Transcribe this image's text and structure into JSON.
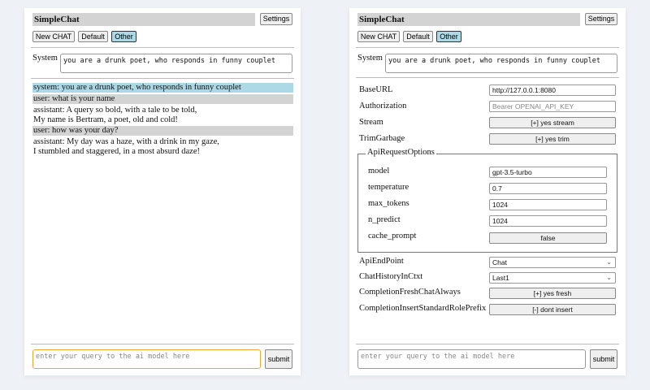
{
  "app_title": "SimpleChat",
  "settings_label": "Settings",
  "new_chat_label": "New CHAT",
  "chat_sessions": [
    {
      "label": "Default",
      "selected": false
    },
    {
      "label": "Other",
      "selected": true
    }
  ],
  "system_label": "System",
  "system_prompt": "you are a drunk poet, who responds in funny couplet",
  "messages": [
    {
      "role": "system",
      "text": "system: you are a drunk poet, who responds in funny couplet"
    },
    {
      "role": "user",
      "text": "user: what is your name"
    },
    {
      "role": "assistant",
      "lines": [
        "assistant: A query so bold, with a tale to be told,",
        "My name is Bertram, a poet, old and cold!"
      ]
    },
    {
      "role": "user",
      "text": "user: how was your day?"
    },
    {
      "role": "assistant",
      "lines": [
        "assistant: My day was a haze, with a drink in my gaze,",
        "I stumbled and staggered, in a most absurd daze!"
      ]
    }
  ],
  "query_placeholder": "enter your query to the ai model here",
  "submit_label": "submit",
  "settings": {
    "base_url": {
      "label": "BaseURL",
      "value": "http://127.0.0.1:8080"
    },
    "authorization": {
      "label": "Authorization",
      "placeholder": "Bearer OPENAI_API_KEY"
    },
    "stream": {
      "label": "Stream",
      "value": "[+] yes stream"
    },
    "trim_garbage": {
      "label": "TrimGarbage",
      "value": "[+] yes trim"
    },
    "api_request_options": {
      "legend": "ApiRequestOptions",
      "model": {
        "label": "model",
        "value": "gpt-3.5-turbo"
      },
      "temperature": {
        "label": "temperature",
        "value": "0.7"
      },
      "max_tokens": {
        "label": "max_tokens",
        "value": "1024"
      },
      "n_predict": {
        "label": "n_predict",
        "value": "1024"
      },
      "cache_prompt": {
        "label": "cache_prompt",
        "value": "false"
      }
    },
    "api_endpoint": {
      "label": "ApiEndPoint",
      "value": "Chat"
    },
    "chat_history": {
      "label": "ChatHistoryInCtxt",
      "value": "Last1"
    },
    "completion_fresh": {
      "label": "CompletionFreshChatAlways",
      "value": "[+] yes fresh"
    },
    "completion_insert": {
      "label": "CompletionInsertStandardRolePrefix",
      "value": "[-] dont insert"
    }
  },
  "colors": {
    "system_msg_bg": "#add8e6",
    "user_msg_bg": "#d3d3d3",
    "focus_border": "#e8a93a",
    "background": "#eef1f6"
  }
}
